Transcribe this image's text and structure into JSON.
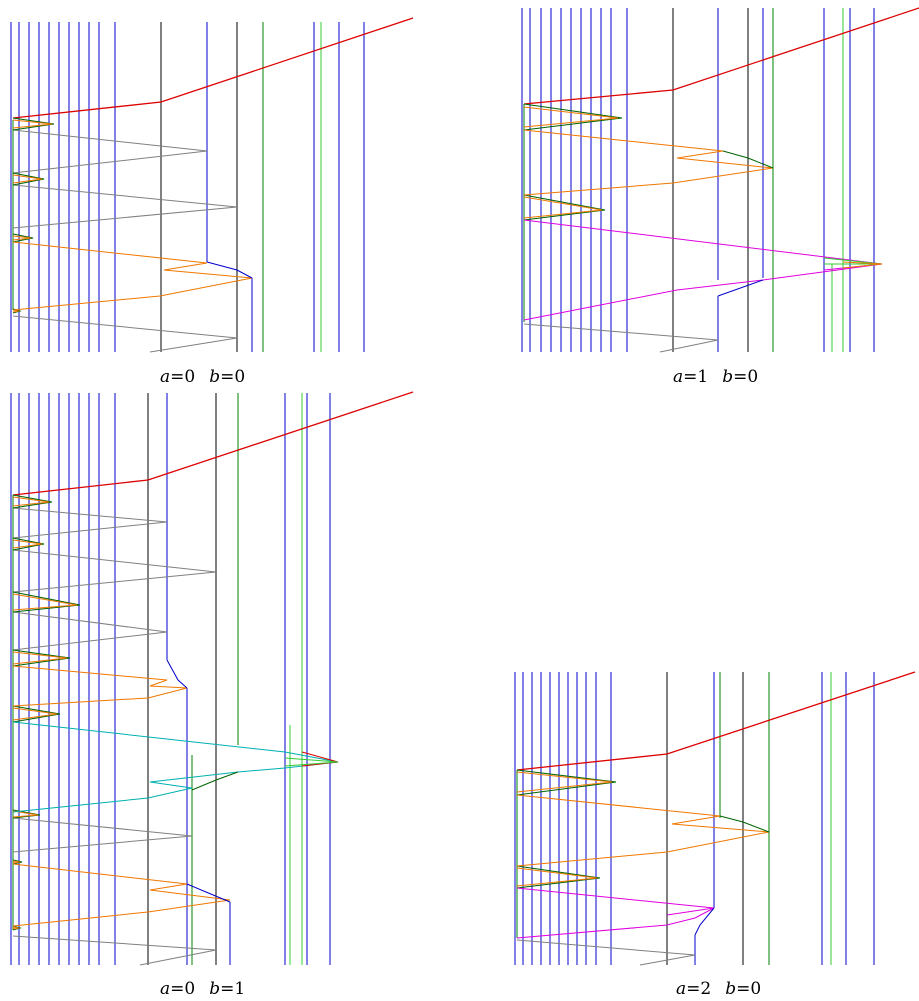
{
  "panels": [
    {
      "id": "p1",
      "caption": {
        "a_var": "a",
        "a_val": "=0",
        "b_var": "b",
        "b_val": "=0"
      }
    },
    {
      "id": "p2",
      "caption": {
        "a_var": "a",
        "a_val": "=1",
        "b_var": "b",
        "b_val": "=0"
      }
    },
    {
      "id": "p3",
      "caption": {
        "a_var": "a",
        "a_val": "=0",
        "b_var": "b",
        "b_val": "=1"
      }
    },
    {
      "id": "p4",
      "caption": {
        "a_var": "a",
        "a_val": "=2",
        "b_var": "b",
        "b_val": "=0"
      }
    }
  ],
  "colors": {
    "blue": "#0000cc",
    "black": "#000000",
    "green": "#008000",
    "light_green": "#33cc33",
    "red": "#dd0000",
    "orange": "#f07800",
    "gray": "#808080",
    "dark_green": "#006400",
    "magenta": "#e000e0",
    "cyan": "#00b0b0"
  }
}
